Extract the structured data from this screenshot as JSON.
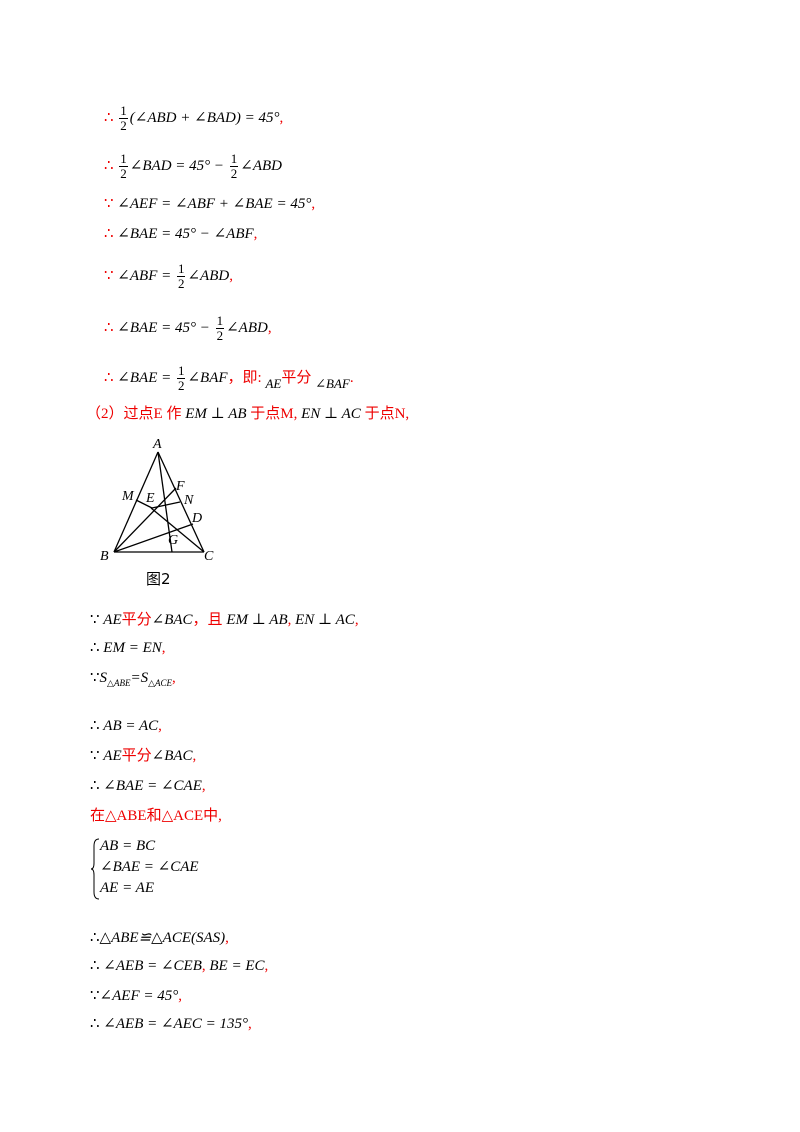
{
  "part1": {
    "l1_pre": "(∠ABD + ∠BAD) = 45°",
    "l2_a": "∠BAD = 45° −",
    "l2_b": "∠ABD",
    "l3": "∠AEF = ∠ABF + ∠BAE = 45°",
    "l4": "∠BAE = 45° − ∠ABF",
    "l5_a": "∠ABF =",
    "l5_b": "∠ABD",
    "l6_a": "∠BAE = 45° −",
    "l6_b": "∠ABD",
    "l7_a": "∠BAE =",
    "l7_b": "∠BAF",
    "l7_c": "，即:",
    "l7_d": "AE",
    "l7_e": "平分",
    "l7_f": "∠BAF",
    "l7_g": ".",
    "half_num": "1",
    "half_den": "2",
    "comma": ","
  },
  "part2": {
    "head_a": "（2）过点",
    "head_b": "E",
    "head_c": "作",
    "head_d": "EM ⊥ AB",
    "head_e": "于点",
    "head_f": "M,",
    "head_g": "EN ⊥ AC",
    "head_h": "于点",
    "head_i": "N,"
  },
  "figure": {
    "caption": "图2",
    "labels": {
      "A": "A",
      "B": "B",
      "C": "C",
      "D": "D",
      "E": "E",
      "F": "F",
      "G": "G",
      "M": "M",
      "N": "N"
    }
  },
  "proof": {
    "p1_a": "AE",
    "p1_b": "平分",
    "p1_c": "∠BAC",
    "p1_d": "，且",
    "p1_e": "EM ⊥ AB",
    "p1_f": "EN ⊥ AC",
    "p2": "EM = EN",
    "p3_a": "S",
    "p3_sub1": "△ABE",
    "p3_eq": "=S",
    "p3_sub2": "△ACE",
    "p4": "AB = AC",
    "p5_a": "AE",
    "p5_b": "平分",
    "p5_c": "∠BAC",
    "p6": "∠BAE = ∠CAE",
    "p7_a": "在",
    "p7_b": "△ABE",
    "p7_c": "和",
    "p7_d": "△ACE",
    "p7_e": "中,",
    "sys1": "AB = BC",
    "sys2": "∠BAE = ∠CAE",
    "sys3": "AE = AE",
    "p8": "△ABE≌△ACE(SAS)",
    "p9_a": "∠AEB = ∠CEB",
    "p9_b": "BE = EC",
    "p10": "∠AEF = 45°",
    "p11": "∠AEB = ∠AEC = 135°"
  },
  "symbols": {
    "therefore": "∴",
    "because": "∵"
  }
}
